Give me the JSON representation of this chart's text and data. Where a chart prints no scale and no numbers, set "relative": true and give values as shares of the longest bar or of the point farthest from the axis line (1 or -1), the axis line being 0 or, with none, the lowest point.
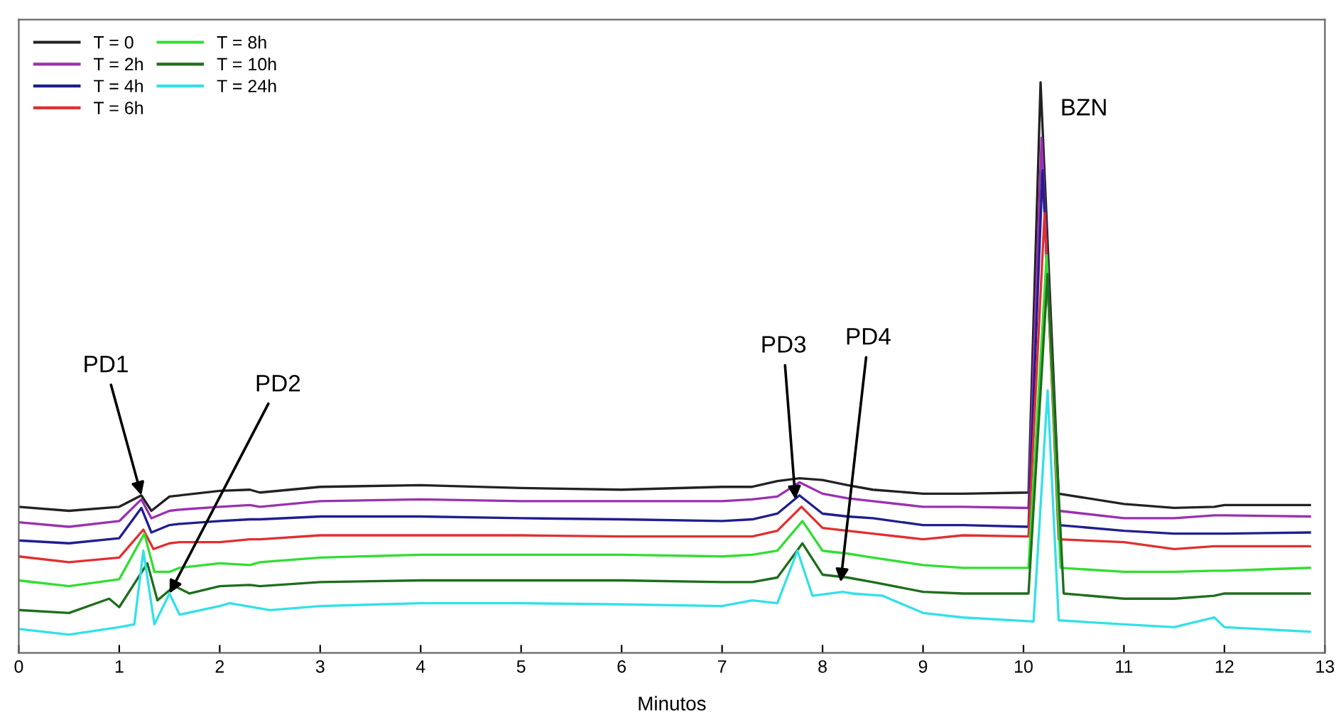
{
  "chart_data": {
    "type": "line",
    "relative": true,
    "xlabel": "Minutos",
    "xlim": [
      0,
      13
    ],
    "xticks": [
      0,
      1,
      2,
      3,
      4,
      5,
      6,
      7,
      8,
      9,
      10,
      11,
      12,
      13
    ],
    "legend": "top left",
    "grid": false,
    "marker": "none",
    "line_style": "solid",
    "annotations": [
      {
        "text": "PD1",
        "x": 1.22,
        "y": 0.276
      },
      {
        "text": "PD2",
        "x": 1.5,
        "y": 0.104
      },
      {
        "text": "PD3",
        "x": 7.73,
        "y": 0.269
      },
      {
        "text": "PD4",
        "x": 8.18,
        "y": 0.124
      },
      {
        "text": "BZN",
        "x": 10.17,
        "y": 1
      }
    ],
    "series": [
      {
        "name": "T = 0",
        "color": "#222222",
        "x": [
          0,
          0.5,
          1.0,
          1.22,
          1.32,
          1.5,
          1.6,
          2.0,
          2.3,
          2.4,
          3,
          4,
          5,
          6,
          7,
          7.3,
          7.55,
          7.77,
          8.0,
          8.25,
          8.5,
          9,
          9.4,
          10.05,
          10.17,
          10.35,
          11,
          11.5,
          11.9,
          12,
          12.85
        ],
        "values": [
          0.256,
          0.249,
          0.256,
          0.276,
          0.249,
          0.274,
          0.276,
          0.284,
          0.286,
          0.281,
          0.291,
          0.294,
          0.289,
          0.286,
          0.291,
          0.291,
          0.301,
          0.306,
          0.303,
          0.294,
          0.286,
          0.279,
          0.279,
          0.281,
          1,
          0.279,
          0.261,
          0.254,
          0.256,
          0.259,
          0.259
        ]
      },
      {
        "name": "T = 2h",
        "color": "#9b30b0",
        "x": [
          0,
          0.5,
          1.0,
          1.22,
          1.32,
          1.5,
          1.6,
          2.0,
          2.3,
          2.4,
          3,
          4,
          5,
          6,
          7,
          7.3,
          7.55,
          7.77,
          8.0,
          8.25,
          8.5,
          9,
          9.4,
          10.05,
          10.18,
          10.35,
          11,
          11.5,
          11.9,
          12,
          12.85
        ],
        "values": [
          0.229,
          0.221,
          0.231,
          0.269,
          0.236,
          0.249,
          0.251,
          0.256,
          0.259,
          0.256,
          0.266,
          0.269,
          0.266,
          0.266,
          0.266,
          0.269,
          0.274,
          0.299,
          0.279,
          0.271,
          0.266,
          0.256,
          0.256,
          0.254,
          0.903,
          0.249,
          0.236,
          0.236,
          0.241,
          0.241,
          0.239
        ]
      },
      {
        "name": "T = 4h",
        "color": "#1f1f8f",
        "x": [
          0,
          0.5,
          1.0,
          1.22,
          1.32,
          1.5,
          1.6,
          2.0,
          2.3,
          2.4,
          3,
          4,
          5,
          6,
          7,
          7.3,
          7.55,
          7.77,
          8.0,
          8.25,
          8.5,
          9,
          9.4,
          10.05,
          10.19,
          10.35,
          11,
          11.5,
          11.9,
          12,
          12.85
        ],
        "values": [
          0.197,
          0.192,
          0.201,
          0.254,
          0.211,
          0.224,
          0.226,
          0.231,
          0.234,
          0.234,
          0.239,
          0.239,
          0.236,
          0.234,
          0.231,
          0.234,
          0.244,
          0.276,
          0.244,
          0.239,
          0.236,
          0.224,
          0.224,
          0.221,
          0.846,
          0.224,
          0.214,
          0.209,
          0.209,
          0.209,
          0.211
        ]
      },
      {
        "name": "T = 6h",
        "color": "#e03030",
        "x": [
          0,
          0.5,
          1.0,
          1.24,
          1.34,
          1.5,
          1.6,
          2.0,
          2.3,
          2.4,
          3,
          4,
          5,
          6,
          7,
          7.3,
          7.55,
          7.79,
          8.0,
          8.25,
          8.5,
          9,
          9.4,
          10.05,
          10.21,
          10.35,
          11,
          11.5,
          11.9,
          12,
          12.85
        ],
        "values": [
          0.169,
          0.159,
          0.167,
          0.216,
          0.182,
          0.192,
          0.194,
          0.194,
          0.199,
          0.199,
          0.206,
          0.206,
          0.206,
          0.204,
          0.204,
          0.204,
          0.214,
          0.256,
          0.219,
          0.214,
          0.209,
          0.199,
          0.206,
          0.204,
          0.771,
          0.199,
          0.194,
          0.182,
          0.187,
          0.187,
          0.187
        ]
      },
      {
        "name": "T = 8h",
        "color": "#33dd33",
        "x": [
          0,
          0.5,
          1.0,
          1.25,
          1.35,
          1.5,
          1.6,
          2.0,
          2.3,
          2.4,
          3,
          4,
          5,
          6,
          7,
          7.3,
          7.55,
          7.8,
          8.0,
          8.25,
          8.5,
          9,
          9.4,
          10.05,
          10.23,
          10.37,
          11,
          11.5,
          11.9,
          12,
          12.85
        ],
        "values": [
          0.127,
          0.117,
          0.129,
          0.209,
          0.142,
          0.142,
          0.149,
          0.157,
          0.154,
          0.159,
          0.167,
          0.172,
          0.172,
          0.172,
          0.169,
          0.172,
          0.179,
          0.231,
          0.179,
          0.174,
          0.167,
          0.154,
          0.149,
          0.149,
          0.697,
          0.149,
          0.142,
          0.142,
          0.144,
          0.144,
          0.149
        ]
      },
      {
        "name": "T = 10h",
        "color": "#1e6e1e",
        "x": [
          0,
          0.5,
          0.9,
          1.0,
          1.28,
          1.38,
          1.55,
          1.7,
          2.0,
          2.3,
          2.4,
          3,
          4,
          5,
          6,
          7,
          7.3,
          7.55,
          7.8,
          8.0,
          8.25,
          8.5,
          9,
          9.4,
          10.05,
          10.24,
          10.4,
          11,
          11.5,
          11.9,
          12,
          12.85
        ],
        "values": [
          0.075,
          0.07,
          0.095,
          0.08,
          0.157,
          0.092,
          0.117,
          0.104,
          0.117,
          0.119,
          0.117,
          0.124,
          0.127,
          0.127,
          0.127,
          0.124,
          0.124,
          0.132,
          0.192,
          0.137,
          0.132,
          0.124,
          0.107,
          0.104,
          0.104,
          0.664,
          0.104,
          0.095,
          0.095,
          0.1,
          0.104,
          0.104
        ]
      },
      {
        "name": "T = 24h",
        "color": "#33e0e8",
        "x": [
          0,
          0.5,
          1.0,
          1.15,
          1.24,
          1.35,
          1.5,
          1.6,
          2.0,
          2.1,
          2.5,
          3,
          4,
          5,
          6,
          7,
          7.3,
          7.55,
          7.75,
          7.9,
          8.2,
          8.3,
          8.6,
          9,
          9.4,
          10.1,
          10.24,
          10.35,
          11,
          11.5,
          11.9,
          12,
          12.85
        ],
        "values": [
          0.042,
          0.032,
          0.045,
          0.05,
          0.179,
          0.05,
          0.104,
          0.067,
          0.082,
          0.087,
          0.075,
          0.082,
          0.087,
          0.087,
          0.085,
          0.082,
          0.092,
          0.087,
          0.179,
          0.1,
          0.107,
          0.104,
          0.1,
          0.07,
          0.062,
          0.055,
          0.46,
          0.057,
          0.05,
          0.045,
          0.062,
          0.045,
          0.037
        ]
      }
    ]
  }
}
